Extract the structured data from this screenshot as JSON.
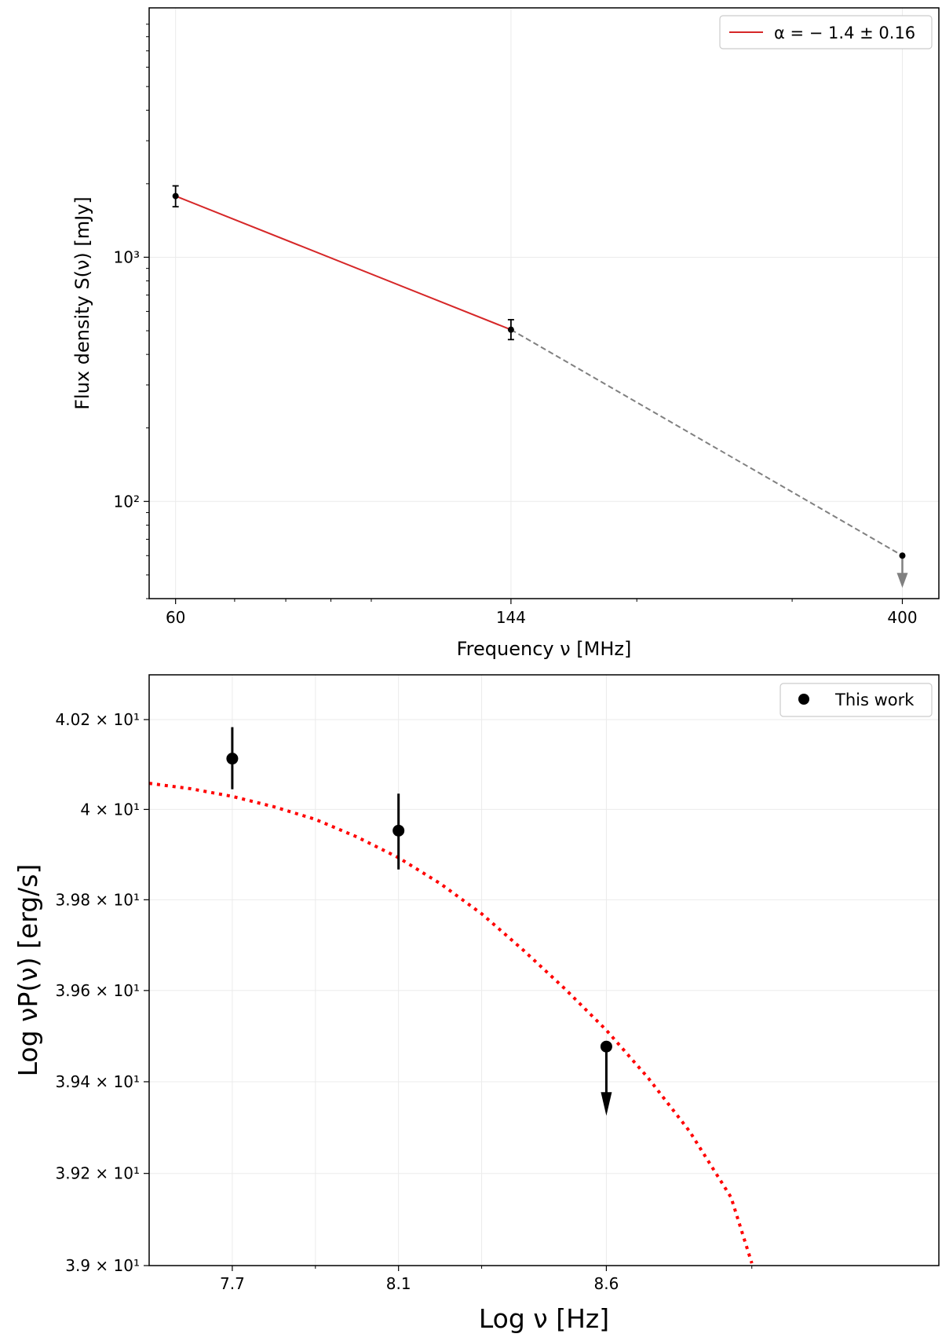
{
  "chart_data": [
    {
      "type": "line",
      "xlabel": "Frequency ν [MHz]",
      "ylabel": "Flux density S(ν) [mJy]",
      "xscale": "log",
      "yscale": "log",
      "xlim": [
        56,
        440
      ],
      "ylim": [
        40,
        10500
      ],
      "xticks": [
        60,
        144,
        400
      ],
      "xtick_labels": [
        "60",
        "144",
        "400"
      ],
      "yticks": [
        100,
        1000
      ],
      "ytick_labels": [
        "10²",
        "10³"
      ],
      "grid": true,
      "legend": {
        "placement": "top-right",
        "entries": [
          "α = − 1.4 ± 0.16"
        ]
      },
      "points": [
        {
          "x": 60,
          "y": 1780,
          "yerr_low": 1610,
          "yerr_high": 1960,
          "upper_limit": false
        },
        {
          "x": 144,
          "y": 505,
          "yerr_low": 460,
          "yerr_high": 555,
          "upper_limit": false
        },
        {
          "x": 400,
          "y": 60,
          "upper_limit": true
        }
      ],
      "fit": {
        "color": "#d62728",
        "x": [
          60,
          144
        ],
        "y": [
          1780,
          505
        ]
      },
      "extrapolation": {
        "color": "#808080",
        "style": "dashed",
        "x": [
          144,
          400
        ],
        "y": [
          505,
          60
        ]
      }
    },
    {
      "type": "scatter",
      "xlabel": "Log ν [Hz]",
      "ylabel": "Log νP(ν) [erg/s]",
      "yscale": "log",
      "xlim": [
        7.5,
        9.4
      ],
      "ylim": [
        39.0,
        40.3
      ],
      "xticks": [
        7.7,
        8.1,
        8.6
      ],
      "xtick_labels": [
        "7.7",
        "8.1",
        "8.6"
      ],
      "yticks": [
        39.0,
        39.2,
        39.4,
        39.6,
        39.8,
        40.0,
        40.2
      ],
      "ytick_labels": [
        "3.9 × 10¹",
        "3.92 × 10¹",
        "3.94 × 10¹",
        "3.96 × 10¹",
        "3.98 × 10¹",
        "4 × 10¹",
        "4.02 × 10¹"
      ],
      "grid": true,
      "legend": {
        "placement": "top-right",
        "entries": [
          "This work"
        ]
      },
      "series": [
        {
          "name": "This work",
          "points": [
            {
              "x": 7.7,
              "y": 40.113,
              "yerr_low": 40.045,
              "yerr_high": 40.183,
              "upper_limit": false
            },
            {
              "x": 8.1,
              "y": 39.953,
              "yerr_low": 39.867,
              "yerr_high": 40.035,
              "upper_limit": false
            },
            {
              "x": 8.6,
              "y": 39.477,
              "upper_limit": true
            }
          ]
        }
      ],
      "model_curve": {
        "color": "#ff0000",
        "style": "dotted",
        "x": [
          7.5,
          7.6,
          7.7,
          7.8,
          7.9,
          8.0,
          8.1,
          8.2,
          8.3,
          8.4,
          8.5,
          8.6,
          8.7,
          8.8,
          8.9,
          8.95
        ],
        "y": [
          40.058,
          40.046,
          40.029,
          40.006,
          39.978,
          39.939,
          39.893,
          39.836,
          39.769,
          39.689,
          39.604,
          39.513,
          39.409,
          39.292,
          39.148,
          39.005
        ]
      }
    }
  ]
}
